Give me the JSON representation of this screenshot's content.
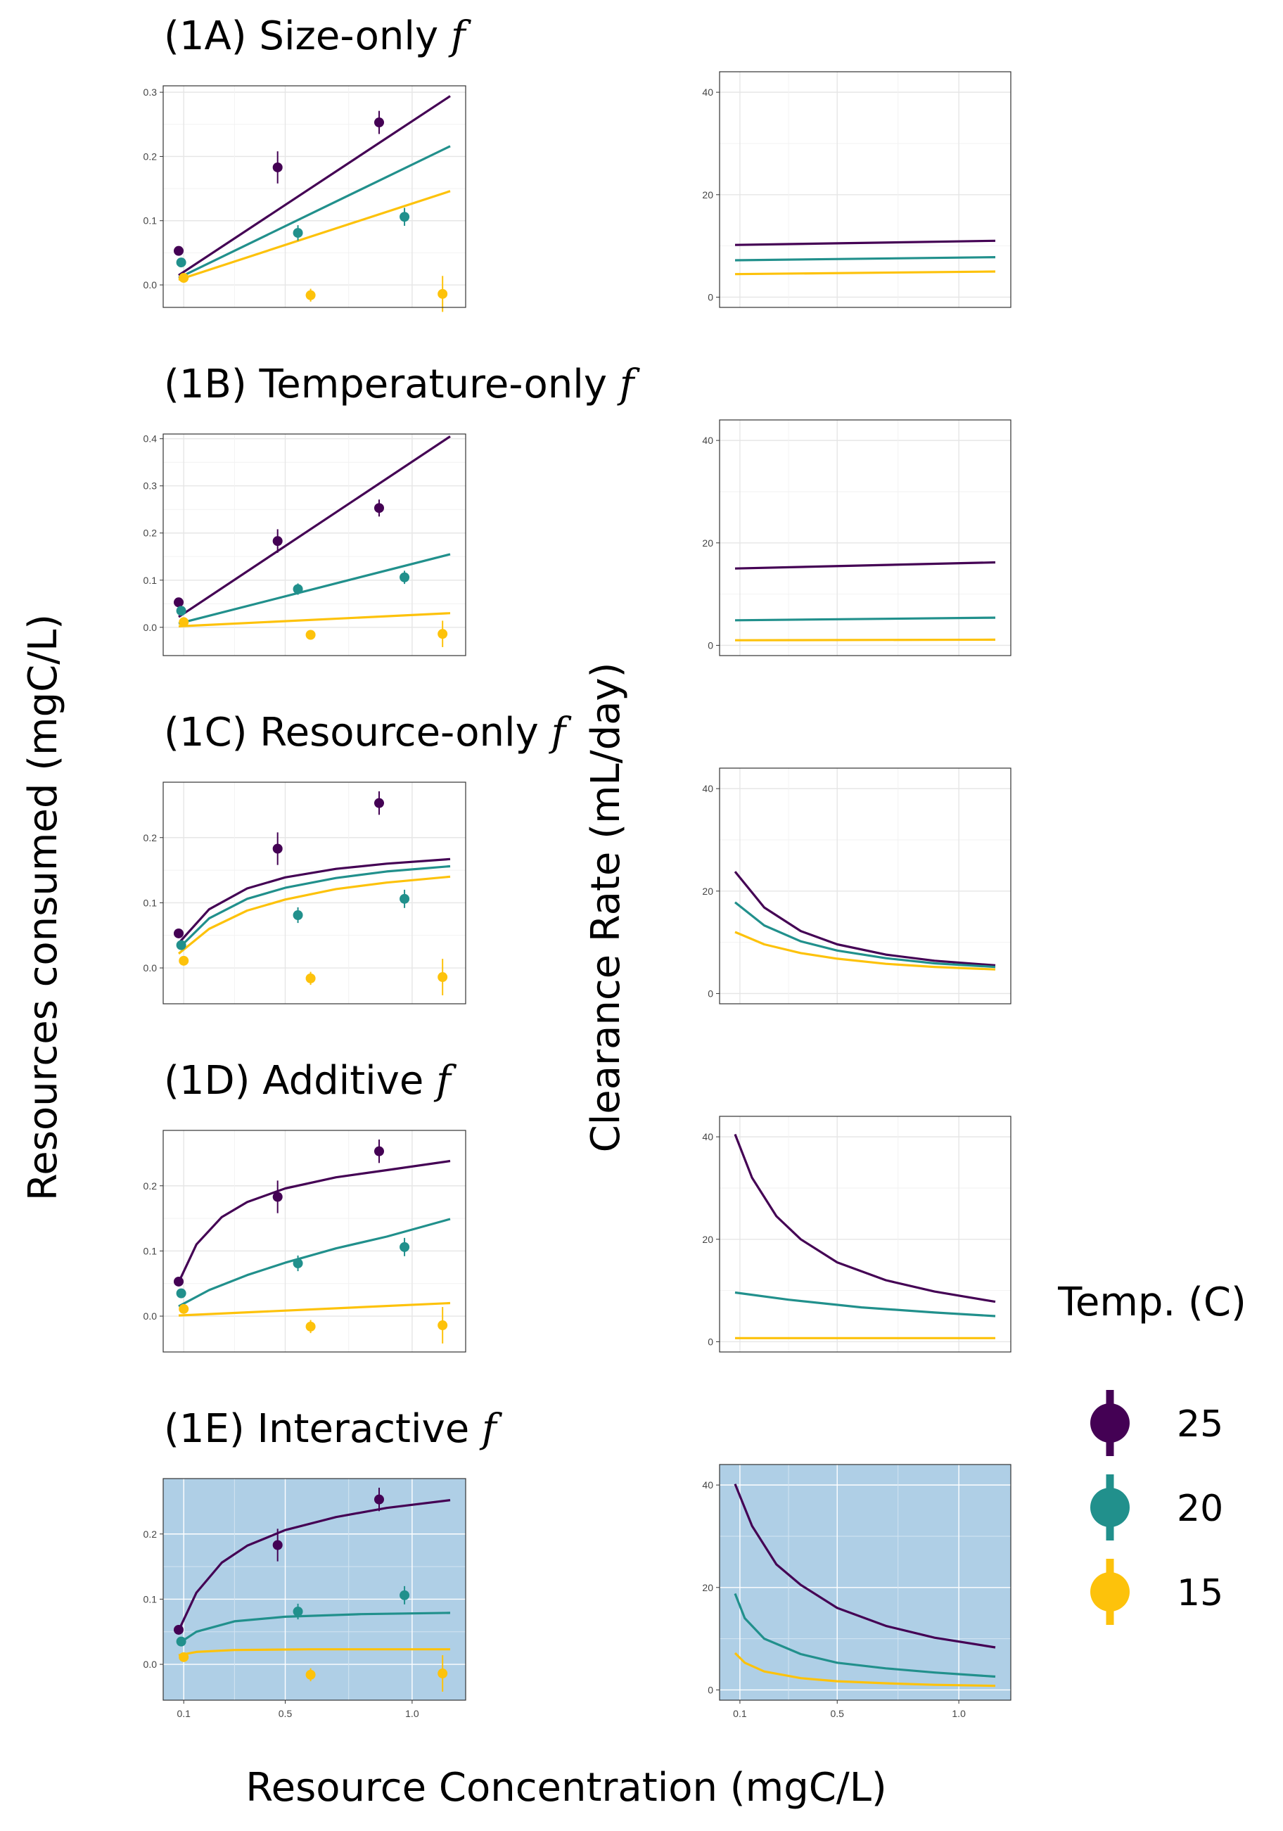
{
  "figure": {
    "y_label_left": "Resources consumed (mgC/L)",
    "y_label_right": "Clearance Rate (mL/day)",
    "x_label": "Resource Concentration (mgC/L)",
    "legend": {
      "title": "Temp. (C)",
      "entries": [
        {
          "label": "25",
          "color": "#440154"
        },
        {
          "label": "20",
          "color": "#21908C"
        },
        {
          "label": "15",
          "color": "#FDC20B"
        }
      ]
    },
    "highlight_panel_bg": "#AFCFE6"
  },
  "chart_data": [
    {
      "id": "1A",
      "title": "(1A) Size-only",
      "title_symbol": "f",
      "left": {
        "type": "line+scatter",
        "x_range": [
          0.08,
          1.15
        ],
        "ylim": [
          -0.035,
          0.31
        ],
        "y_ticks": [
          "0.0",
          "0.1",
          "0.2",
          "0.3"
        ],
        "y_tick_values": [
          0,
          0.1,
          0.2,
          0.3
        ],
        "points": [
          {
            "temp": "25",
            "x": 0.08,
            "y": 0.053,
            "err": 0
          },
          {
            "temp": "25",
            "x": 0.47,
            "y": 0.183,
            "err": 0.025
          },
          {
            "temp": "25",
            "x": 0.87,
            "y": 0.253,
            "err": 0.018
          },
          {
            "temp": "20",
            "x": 0.09,
            "y": 0.035,
            "err": 0
          },
          {
            "temp": "20",
            "x": 0.55,
            "y": 0.081,
            "err": 0.012
          },
          {
            "temp": "20",
            "x": 0.97,
            "y": 0.106,
            "err": 0.014
          },
          {
            "temp": "15",
            "x": 0.1,
            "y": 0.011,
            "err": 0
          },
          {
            "temp": "15",
            "x": 0.6,
            "y": -0.016,
            "err": 0.01
          },
          {
            "temp": "15",
            "x": 1.12,
            "y": -0.014,
            "err": 0.028
          }
        ],
        "series": [
          {
            "temp": "25",
            "x": [
              0.08,
              1.15
            ],
            "y": [
              0.015,
              0.294
            ]
          },
          {
            "temp": "20",
            "x": [
              0.08,
              1.15
            ],
            "y": [
              0.011,
              0.216
            ]
          },
          {
            "temp": "15",
            "x": [
              0.08,
              1.15
            ],
            "y": [
              0.008,
              0.146
            ]
          }
        ]
      },
      "right": {
        "type": "line",
        "x_range": [
          0.08,
          1.15
        ],
        "ylim": [
          -2,
          44
        ],
        "y_ticks": [
          "0",
          "20",
          "40"
        ],
        "y_tick_values": [
          0,
          20,
          40
        ],
        "series": [
          {
            "temp": "25",
            "x": [
              0.08,
              1.15
            ],
            "y": [
              10.2,
              11.0
            ]
          },
          {
            "temp": "20",
            "x": [
              0.08,
              1.15
            ],
            "y": [
              7.2,
              7.8
            ]
          },
          {
            "temp": "15",
            "x": [
              0.08,
              1.15
            ],
            "y": [
              4.5,
              5.0
            ]
          }
        ]
      }
    },
    {
      "id": "1B",
      "title": "(1B) Temperature-only",
      "title_symbol": "f",
      "left": {
        "type": "line+scatter",
        "x_range": [
          0.08,
          1.15
        ],
        "ylim": [
          -0.06,
          0.41
        ],
        "y_ticks": [
          "0.0",
          "0.1",
          "0.2",
          "0.3",
          "0.4"
        ],
        "y_tick_values": [
          0,
          0.1,
          0.2,
          0.3,
          0.4
        ],
        "points": [
          {
            "temp": "25",
            "x": 0.08,
            "y": 0.053,
            "err": 0
          },
          {
            "temp": "25",
            "x": 0.47,
            "y": 0.183,
            "err": 0.025
          },
          {
            "temp": "25",
            "x": 0.87,
            "y": 0.253,
            "err": 0.018
          },
          {
            "temp": "20",
            "x": 0.09,
            "y": 0.035,
            "err": 0
          },
          {
            "temp": "20",
            "x": 0.55,
            "y": 0.081,
            "err": 0.012
          },
          {
            "temp": "20",
            "x": 0.97,
            "y": 0.106,
            "err": 0.014
          },
          {
            "temp": "15",
            "x": 0.1,
            "y": 0.011,
            "err": 0
          },
          {
            "temp": "15",
            "x": 0.6,
            "y": -0.016,
            "err": 0.01
          },
          {
            "temp": "15",
            "x": 1.12,
            "y": -0.014,
            "err": 0.028
          }
        ],
        "series": [
          {
            "temp": "25",
            "x": [
              0.08,
              1.15
            ],
            "y": [
              0.022,
              0.405
            ]
          },
          {
            "temp": "20",
            "x": [
              0.08,
              1.15
            ],
            "y": [
              0.008,
              0.155
            ]
          },
          {
            "temp": "15",
            "x": [
              0.08,
              1.15
            ],
            "y": [
              0.002,
              0.03
            ]
          }
        ]
      },
      "right": {
        "type": "line",
        "x_range": [
          0.08,
          1.15
        ],
        "ylim": [
          -2,
          44
        ],
        "y_ticks": [
          "0",
          "20",
          "40"
        ],
        "y_tick_values": [
          0,
          20,
          40
        ],
        "series": [
          {
            "temp": "25",
            "x": [
              0.08,
              1.15
            ],
            "y": [
              15.0,
              16.2
            ]
          },
          {
            "temp": "20",
            "x": [
              0.08,
              1.15
            ],
            "y": [
              4.9,
              5.4
            ]
          },
          {
            "temp": "15",
            "x": [
              0.08,
              1.15
            ],
            "y": [
              1.0,
              1.1
            ]
          }
        ]
      }
    },
    {
      "id": "1C",
      "title": "(1C) Resource-only",
      "title_symbol": "f",
      "left": {
        "type": "line+scatter",
        "x_range": [
          0.08,
          1.15
        ],
        "ylim": [
          -0.055,
          0.285
        ],
        "y_ticks": [
          "0.0",
          "0.1",
          "0.2"
        ],
        "y_tick_values": [
          0,
          0.1,
          0.2
        ],
        "points": [
          {
            "temp": "25",
            "x": 0.08,
            "y": 0.053,
            "err": 0
          },
          {
            "temp": "25",
            "x": 0.47,
            "y": 0.183,
            "err": 0.025
          },
          {
            "temp": "25",
            "x": 0.87,
            "y": 0.253,
            "err": 0.018
          },
          {
            "temp": "20",
            "x": 0.09,
            "y": 0.035,
            "err": 0
          },
          {
            "temp": "20",
            "x": 0.55,
            "y": 0.081,
            "err": 0.012
          },
          {
            "temp": "20",
            "x": 0.97,
            "y": 0.106,
            "err": 0.014
          },
          {
            "temp": "15",
            "x": 0.1,
            "y": 0.011,
            "err": 0
          },
          {
            "temp": "15",
            "x": 0.6,
            "y": -0.016,
            "err": 0.01
          },
          {
            "temp": "15",
            "x": 1.12,
            "y": -0.014,
            "err": 0.028
          }
        ],
        "series": [
          {
            "temp": "25",
            "x": [
              0.08,
              0.2,
              0.35,
              0.5,
              0.7,
              0.9,
              1.15
            ],
            "y": [
              0.038,
              0.09,
              0.122,
              0.139,
              0.152,
              0.16,
              0.167
            ]
          },
          {
            "temp": "20",
            "x": [
              0.08,
              0.2,
              0.35,
              0.5,
              0.7,
              0.9,
              1.15
            ],
            "y": [
              0.03,
              0.076,
              0.106,
              0.123,
              0.138,
              0.148,
              0.156
            ]
          },
          {
            "temp": "15",
            "x": [
              0.08,
              0.2,
              0.35,
              0.5,
              0.7,
              0.9,
              1.15
            ],
            "y": [
              0.022,
              0.06,
              0.088,
              0.105,
              0.121,
              0.131,
              0.14
            ]
          }
        ]
      },
      "right": {
        "type": "line",
        "x_range": [
          0.08,
          1.15
        ],
        "ylim": [
          -2,
          44
        ],
        "y_ticks": [
          "0",
          "20",
          "40"
        ],
        "y_tick_values": [
          0,
          20,
          40
        ],
        "series": [
          {
            "temp": "25",
            "x": [
              0.08,
              0.2,
              0.35,
              0.5,
              0.7,
              0.9,
              1.15
            ],
            "y": [
              23.8,
              16.8,
              12.2,
              9.6,
              7.6,
              6.4,
              5.5
            ]
          },
          {
            "temp": "20",
            "x": [
              0.08,
              0.2,
              0.35,
              0.5,
              0.7,
              0.9,
              1.15
            ],
            "y": [
              17.8,
              13.3,
              10.2,
              8.4,
              6.9,
              5.9,
              5.2
            ]
          },
          {
            "temp": "15",
            "x": [
              0.08,
              0.2,
              0.35,
              0.5,
              0.7,
              0.9,
              1.15
            ],
            "y": [
              12.0,
              9.6,
              7.9,
              6.8,
              5.8,
              5.2,
              4.7
            ]
          }
        ]
      }
    },
    {
      "id": "1D",
      "title": "(1D) Additive",
      "title_symbol": "f",
      "left": {
        "type": "line+scatter",
        "x_range": [
          0.08,
          1.15
        ],
        "ylim": [
          -0.055,
          0.285
        ],
        "y_ticks": [
          "0.0",
          "0.1",
          "0.2"
        ],
        "y_tick_values": [
          0,
          0.1,
          0.2
        ],
        "points": [
          {
            "temp": "25",
            "x": 0.08,
            "y": 0.053,
            "err": 0
          },
          {
            "temp": "25",
            "x": 0.47,
            "y": 0.183,
            "err": 0.025
          },
          {
            "temp": "25",
            "x": 0.87,
            "y": 0.253,
            "err": 0.018
          },
          {
            "temp": "20",
            "x": 0.09,
            "y": 0.035,
            "err": 0
          },
          {
            "temp": "20",
            "x": 0.55,
            "y": 0.081,
            "err": 0.012
          },
          {
            "temp": "20",
            "x": 0.97,
            "y": 0.106,
            "err": 0.014
          },
          {
            "temp": "15",
            "x": 0.1,
            "y": 0.011,
            "err": 0
          },
          {
            "temp": "15",
            "x": 0.6,
            "y": -0.016,
            "err": 0.01
          },
          {
            "temp": "15",
            "x": 1.12,
            "y": -0.014,
            "err": 0.028
          }
        ],
        "series": [
          {
            "temp": "25",
            "x": [
              0.08,
              0.15,
              0.25,
              0.35,
              0.5,
              0.7,
              0.9,
              1.15
            ],
            "y": [
              0.052,
              0.11,
              0.152,
              0.175,
              0.196,
              0.213,
              0.224,
              0.238
            ]
          },
          {
            "temp": "20",
            "x": [
              0.08,
              0.2,
              0.35,
              0.5,
              0.7,
              0.9,
              1.15
            ],
            "y": [
              0.015,
              0.04,
              0.063,
              0.082,
              0.104,
              0.122,
              0.149
            ]
          },
          {
            "temp": "15",
            "x": [
              0.08,
              1.15
            ],
            "y": [
              0.001,
              0.02
            ]
          }
        ]
      },
      "right": {
        "type": "line",
        "x_range": [
          0.08,
          1.15
        ],
        "ylim": [
          -2,
          44
        ],
        "y_ticks": [
          "0",
          "20",
          "40"
        ],
        "y_tick_values": [
          0,
          20,
          40
        ],
        "series": [
          {
            "temp": "25",
            "x": [
              0.08,
              0.15,
              0.25,
              0.35,
              0.5,
              0.7,
              0.9,
              1.15
            ],
            "y": [
              40.5,
              32.0,
              24.5,
              20.0,
              15.5,
              12.0,
              9.8,
              7.8
            ]
          },
          {
            "temp": "20",
            "x": [
              0.08,
              0.3,
              0.6,
              0.9,
              1.15
            ],
            "y": [
              9.6,
              8.2,
              6.7,
              5.7,
              5.0
            ]
          },
          {
            "temp": "15",
            "x": [
              0.08,
              1.15
            ],
            "y": [
              0.7,
              0.7
            ]
          }
        ]
      }
    },
    {
      "id": "1E",
      "title": "(1E) Interactive",
      "title_symbol": "f",
      "highlighted": true,
      "left": {
        "type": "line+scatter",
        "x_range": [
          0.08,
          1.15
        ],
        "ylim": [
          -0.055,
          0.285
        ],
        "y_ticks": [
          "0.0",
          "0.1",
          "0.2"
        ],
        "y_tick_values": [
          0,
          0.1,
          0.2
        ],
        "x_ticks": [
          "0.1",
          "0.5",
          "1.0"
        ],
        "x_tick_values": [
          0.1,
          0.5,
          1.0
        ],
        "points": [
          {
            "temp": "25",
            "x": 0.08,
            "y": 0.053,
            "err": 0
          },
          {
            "temp": "25",
            "x": 0.47,
            "y": 0.183,
            "err": 0.025
          },
          {
            "temp": "25",
            "x": 0.87,
            "y": 0.253,
            "err": 0.018
          },
          {
            "temp": "20",
            "x": 0.09,
            "y": 0.035,
            "err": 0
          },
          {
            "temp": "20",
            "x": 0.55,
            "y": 0.081,
            "err": 0.012
          },
          {
            "temp": "20",
            "x": 0.97,
            "y": 0.106,
            "err": 0.014
          },
          {
            "temp": "15",
            "x": 0.1,
            "y": 0.011,
            "err": 0
          },
          {
            "temp": "15",
            "x": 0.6,
            "y": -0.016,
            "err": 0.01
          },
          {
            "temp": "15",
            "x": 1.12,
            "y": -0.014,
            "err": 0.028
          }
        ],
        "series": [
          {
            "temp": "25",
            "x": [
              0.08,
              0.15,
              0.25,
              0.35,
              0.5,
              0.7,
              0.9,
              1.15
            ],
            "y": [
              0.052,
              0.11,
              0.156,
              0.182,
              0.206,
              0.226,
              0.24,
              0.252
            ]
          },
          {
            "temp": "20",
            "x": [
              0.08,
              0.15,
              0.3,
              0.5,
              0.8,
              1.15
            ],
            "y": [
              0.032,
              0.05,
              0.066,
              0.073,
              0.077,
              0.079
            ]
          },
          {
            "temp": "15",
            "x": [
              0.08,
              0.15,
              0.3,
              0.6,
              1.15
            ],
            "y": [
              0.014,
              0.019,
              0.022,
              0.023,
              0.023
            ]
          }
        ]
      },
      "right": {
        "type": "line",
        "x_range": [
          0.08,
          1.15
        ],
        "ylim": [
          -2,
          44
        ],
        "y_ticks": [
          "0",
          "20",
          "40"
        ],
        "y_tick_values": [
          0,
          20,
          40
        ],
        "x_ticks": [
          "0.1",
          "0.5",
          "1.0"
        ],
        "x_tick_values": [
          0.1,
          0.5,
          1.0
        ],
        "series": [
          {
            "temp": "25",
            "x": [
              0.08,
              0.15,
              0.25,
              0.35,
              0.5,
              0.7,
              0.9,
              1.15
            ],
            "y": [
              40.2,
              32.0,
              24.5,
              20.5,
              16.0,
              12.5,
              10.2,
              8.3
            ]
          },
          {
            "temp": "20",
            "x": [
              0.08,
              0.12,
              0.2,
              0.35,
              0.5,
              0.7,
              0.9,
              1.15
            ],
            "y": [
              18.8,
              14.0,
              10.0,
              7.0,
              5.3,
              4.2,
              3.4,
              2.6
            ]
          },
          {
            "temp": "15",
            "x": [
              0.08,
              0.12,
              0.2,
              0.35,
              0.5,
              0.7,
              0.9,
              1.15
            ],
            "y": [
              7.2,
              5.3,
              3.6,
              2.3,
              1.7,
              1.3,
              1.0,
              0.8
            ]
          }
        ]
      }
    }
  ]
}
